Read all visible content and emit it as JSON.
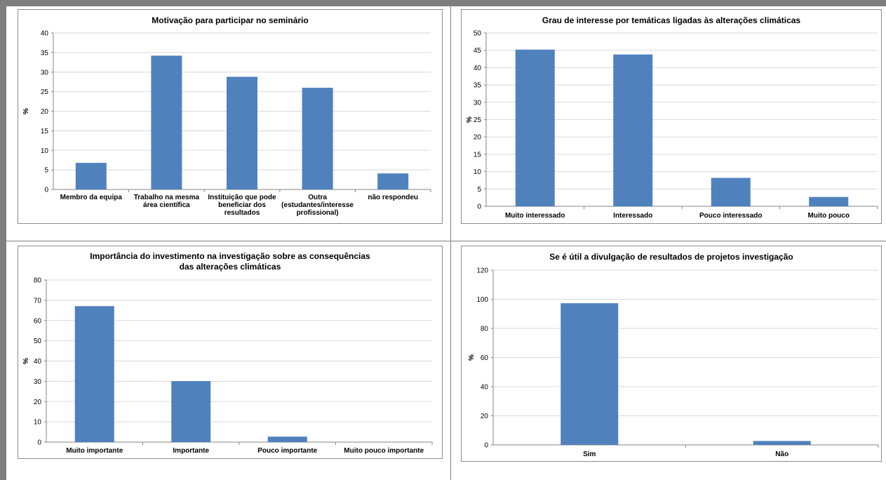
{
  "chart_data": [
    {
      "type": "bar",
      "title": "Motivação para participar no seminário",
      "ylabel": "%",
      "ylim": [
        0,
        40
      ],
      "yticks": [
        0,
        5,
        10,
        15,
        20,
        25,
        30,
        35,
        40
      ],
      "categories": [
        "Membro da equipa",
        "Trabalho na mesma área científica",
        "Instituição que pode beneficiar dos resultados",
        "Outra (estudantes/interesse profissional)",
        "não respondeu"
      ],
      "values": [
        6.8,
        34.2,
        28.8,
        26.0,
        4.1
      ],
      "color": "#4f81bd",
      "grid": true
    },
    {
      "type": "bar",
      "title": "Grau de interesse por temáticas ligadas às alterações climáticas",
      "ylabel": "%",
      "ylim": [
        0,
        50
      ],
      "yticks": [
        0,
        5,
        10,
        15,
        20,
        25,
        30,
        35,
        40,
        45,
        50
      ],
      "categories": [
        "Muito interessado",
        "Interessado",
        "Pouco interessado",
        "Muito pouco"
      ],
      "values": [
        45.2,
        43.8,
        8.2,
        2.7
      ],
      "color": "#4f81bd",
      "grid": true
    },
    {
      "type": "bar",
      "title": "Importância do investimento na investigação sobre as consequências das alterações climáticas",
      "ylabel": "%",
      "ylim": [
        0,
        80
      ],
      "yticks": [
        0,
        10,
        20,
        30,
        40,
        50,
        60,
        70,
        80
      ],
      "categories": [
        "Muito importante",
        "Importante",
        "Pouco importante",
        "Muito pouco importante"
      ],
      "values": [
        67.1,
        30.1,
        2.7,
        0
      ],
      "color": "#4f81bd",
      "grid": true
    },
    {
      "type": "bar",
      "title": "Se é útil a divulgação de resultados de projetos investigação",
      "ylabel": "%",
      "ylim": [
        0,
        120
      ],
      "yticks": [
        0,
        20,
        40,
        60,
        80,
        100,
        120
      ],
      "categories": [
        "Sim",
        "Não"
      ],
      "values": [
        97.3,
        2.7
      ],
      "color": "#4f81bd",
      "grid": true
    }
  ]
}
